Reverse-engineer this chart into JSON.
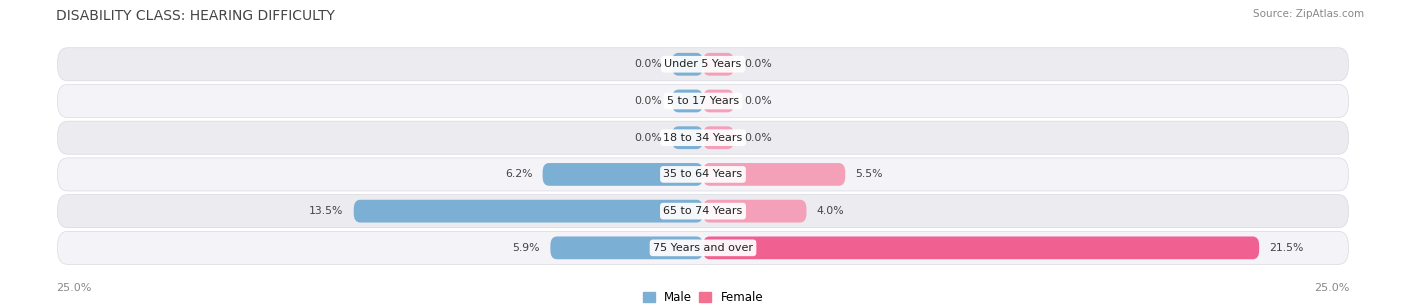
{
  "title": "DISABILITY CLASS: HEARING DIFFICULTY",
  "source": "Source: ZipAtlas.com",
  "categories": [
    "Under 5 Years",
    "5 to 17 Years",
    "18 to 34 Years",
    "35 to 64 Years",
    "65 to 74 Years",
    "75 Years and over"
  ],
  "male_values": [
    0.0,
    0.0,
    0.0,
    6.2,
    13.5,
    5.9
  ],
  "female_values": [
    0.0,
    0.0,
    0.0,
    5.5,
    4.0,
    21.5
  ],
  "x_max": 25.0,
  "male_color": "#7bafd4",
  "female_color": "#f4a0b8",
  "female_color_75": "#f06090",
  "bar_bg_odd": "#ebebf0",
  "bar_bg_even": "#f4f4f8",
  "row_border": "#d8d8e0",
  "label_color": "#444444",
  "title_color": "#444444",
  "source_color": "#888888",
  "axis_label_color": "#888888",
  "legend_male_color": "#7bafd4",
  "legend_female_color": "#f47090",
  "min_bar_stub": 1.2,
  "fig_bg": "#ffffff"
}
